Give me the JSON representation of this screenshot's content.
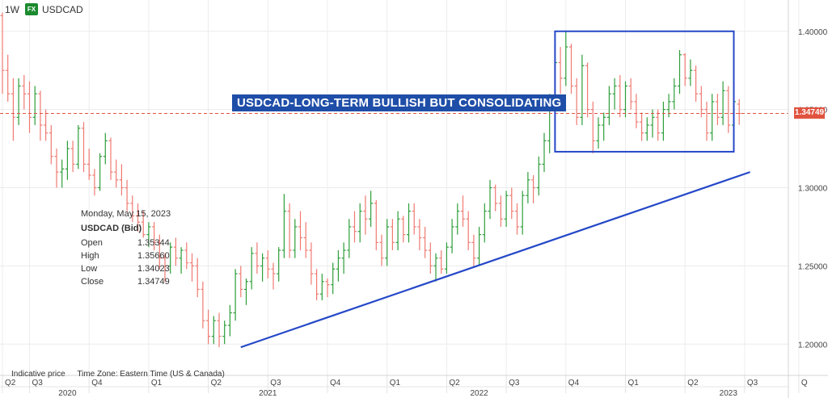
{
  "header": {
    "timeframe": "1W",
    "badge": "FX",
    "symbol": "USDCAD"
  },
  "annotation": {
    "banner": "USDCAD-LONG-TERM BULLISH BUT CONSOLIDATING"
  },
  "tooltip": {
    "date": "Monday, May 15, 2023",
    "title": "USDCAD (Bid)",
    "rows": [
      {
        "label": "Open",
        "value": "1.35344"
      },
      {
        "label": "High",
        "value": "1.35660"
      },
      {
        "label": "Low",
        "value": "1.34023"
      },
      {
        "label": "Close",
        "value": "1.34749"
      }
    ]
  },
  "footer": {
    "indicative": "Indicative price",
    "timezone": "Time Zone: Eastern Time (US & Canada)"
  },
  "current_price": {
    "label": "1.34749",
    "color": "#e0533f"
  },
  "colors": {
    "up": "#2e9e3a",
    "down": "#ef7a72",
    "trendline": "#2548c8",
    "box": "#2548c8",
    "banner_bg": "#1f4ea8"
  },
  "chart_data": {
    "type": "ohlc",
    "interval": "1W",
    "ylim": [
      1.18,
      1.42
    ],
    "y_ticks": [
      "1.20000",
      "1.25000",
      "1.30000",
      "1.35000",
      "1.40000"
    ],
    "y_tick_values": [
      1.2,
      1.25,
      1.3,
      1.35,
      1.4
    ],
    "x_quarter_labels": [
      "Q2",
      "Q3",
      "Q4",
      "Q1",
      "Q2",
      "Q3",
      "Q4",
      "Q1",
      "Q2",
      "Q3",
      "Q4",
      "Q1",
      "Q2",
      "Q3",
      "Q"
    ],
    "x_quarter_weeks": [
      0,
      5,
      16,
      27,
      38,
      49,
      60,
      71,
      82,
      93,
      104,
      115,
      126,
      137,
      147
    ],
    "x_year_labels": [
      "2020",
      "2021",
      "2022",
      "2023"
    ],
    "x_year_weeks": [
      12,
      49,
      88,
      134
    ],
    "current_price": 1.34749,
    "trendline": {
      "start": {
        "week": 44,
        "price": 1.198
      },
      "end": {
        "week": 138,
        "price": 1.31
      }
    },
    "range_box": {
      "week_from": 102,
      "week_to": 135,
      "price_low": 1.323,
      "price_high": 1.4
    },
    "bars": [
      [
        1.41,
        1.412,
        1.36,
        1.375
      ],
      [
        1.375,
        1.385,
        1.355,
        1.36
      ],
      [
        1.36,
        1.37,
        1.33,
        1.345
      ],
      [
        1.345,
        1.37,
        1.34,
        1.365
      ],
      [
        1.365,
        1.372,
        1.35,
        1.36
      ],
      [
        1.36,
        1.368,
        1.335,
        1.345
      ],
      [
        1.345,
        1.365,
        1.34,
        1.36
      ],
      [
        1.36,
        1.362,
        1.33,
        1.34
      ],
      [
        1.34,
        1.35,
        1.33,
        1.335
      ],
      [
        1.335,
        1.34,
        1.315,
        1.32
      ],
      [
        1.32,
        1.325,
        1.3,
        1.31
      ],
      [
        1.31,
        1.318,
        1.3,
        1.312
      ],
      [
        1.312,
        1.33,
        1.305,
        1.325
      ],
      [
        1.325,
        1.33,
        1.31,
        1.315
      ],
      [
        1.315,
        1.34,
        1.312,
        1.338
      ],
      [
        1.338,
        1.342,
        1.31,
        1.315
      ],
      [
        1.315,
        1.325,
        1.305,
        1.308
      ],
      [
        1.308,
        1.312,
        1.295,
        1.3
      ],
      [
        1.3,
        1.322,
        1.298,
        1.32
      ],
      [
        1.32,
        1.335,
        1.315,
        1.33
      ],
      [
        1.33,
        1.332,
        1.305,
        1.31
      ],
      [
        1.31,
        1.318,
        1.3,
        1.305
      ],
      [
        1.305,
        1.315,
        1.295,
        1.3
      ],
      [
        1.3,
        1.305,
        1.285,
        1.29
      ],
      [
        1.29,
        1.295,
        1.278,
        1.282
      ],
      [
        1.282,
        1.29,
        1.272,
        1.278
      ],
      [
        1.278,
        1.285,
        1.268,
        1.27
      ],
      [
        1.27,
        1.278,
        1.262,
        1.275
      ],
      [
        1.275,
        1.278,
        1.26,
        1.265
      ],
      [
        1.265,
        1.27,
        1.248,
        1.255
      ],
      [
        1.255,
        1.258,
        1.24,
        1.25
      ],
      [
        1.25,
        1.265,
        1.245,
        1.262
      ],
      [
        1.262,
        1.268,
        1.25,
        1.255
      ],
      [
        1.255,
        1.262,
        1.245,
        1.26
      ],
      [
        1.26,
        1.265,
        1.248,
        1.252
      ],
      [
        1.252,
        1.258,
        1.24,
        1.25
      ],
      [
        1.25,
        1.255,
        1.23,
        1.235
      ],
      [
        1.235,
        1.24,
        1.21,
        1.215
      ],
      [
        1.215,
        1.222,
        1.2,
        1.205
      ],
      [
        1.205,
        1.218,
        1.2,
        1.215
      ],
      [
        1.215,
        1.22,
        1.198,
        1.205
      ],
      [
        1.205,
        1.215,
        1.2,
        1.212
      ],
      [
        1.212,
        1.225,
        1.205,
        1.22
      ],
      [
        1.22,
        1.248,
        1.215,
        1.245
      ],
      [
        1.245,
        1.25,
        1.23,
        1.235
      ],
      [
        1.235,
        1.242,
        1.225,
        1.24
      ],
      [
        1.24,
        1.262,
        1.235,
        1.258
      ],
      [
        1.258,
        1.265,
        1.245,
        1.25
      ],
      [
        1.25,
        1.258,
        1.24,
        1.255
      ],
      [
        1.255,
        1.26,
        1.242,
        1.248
      ],
      [
        1.248,
        1.252,
        1.235,
        1.245
      ],
      [
        1.245,
        1.262,
        1.24,
        1.26
      ],
      [
        1.26,
        1.296,
        1.255,
        1.285
      ],
      [
        1.285,
        1.29,
        1.255,
        1.26
      ],
      [
        1.26,
        1.28,
        1.255,
        1.275
      ],
      [
        1.275,
        1.285,
        1.26,
        1.268
      ],
      [
        1.268,
        1.278,
        1.255,
        1.26
      ],
      [
        1.26,
        1.265,
        1.238,
        1.245
      ],
      [
        1.245,
        1.248,
        1.228,
        1.232
      ],
      [
        1.232,
        1.245,
        1.228,
        1.24
      ],
      [
        1.24,
        1.242,
        1.23,
        1.238
      ],
      [
        1.238,
        1.252,
        1.232,
        1.248
      ],
      [
        1.248,
        1.26,
        1.24,
        1.255
      ],
      [
        1.255,
        1.265,
        1.245,
        1.26
      ],
      [
        1.26,
        1.28,
        1.255,
        1.275
      ],
      [
        1.275,
        1.285,
        1.265,
        1.272
      ],
      [
        1.272,
        1.29,
        1.265,
        1.285
      ],
      [
        1.285,
        1.295,
        1.27,
        1.28
      ],
      [
        1.28,
        1.298,
        1.275,
        1.29
      ],
      [
        1.29,
        1.292,
        1.26,
        1.265
      ],
      [
        1.265,
        1.27,
        1.25,
        1.255
      ],
      [
        1.255,
        1.28,
        1.25,
        1.275
      ],
      [
        1.275,
        1.28,
        1.26,
        1.265
      ],
      [
        1.265,
        1.285,
        1.26,
        1.28
      ],
      [
        1.28,
        1.282,
        1.265,
        1.27
      ],
      [
        1.27,
        1.29,
        1.265,
        1.285
      ],
      [
        1.285,
        1.29,
        1.27,
        1.275
      ],
      [
        1.275,
        1.28,
        1.26,
        1.268
      ],
      [
        1.268,
        1.275,
        1.255,
        1.26
      ],
      [
        1.26,
        1.265,
        1.245,
        1.25
      ],
      [
        1.25,
        1.258,
        1.24,
        1.255
      ],
      [
        1.255,
        1.26,
        1.245,
        1.248
      ],
      [
        1.248,
        1.265,
        1.245,
        1.262
      ],
      [
        1.262,
        1.28,
        1.258,
        1.275
      ],
      [
        1.275,
        1.29,
        1.27,
        1.285
      ],
      [
        1.285,
        1.295,
        1.275,
        1.28
      ],
      [
        1.28,
        1.285,
        1.26,
        1.265
      ],
      [
        1.265,
        1.27,
        1.25,
        1.255
      ],
      [
        1.255,
        1.275,
        1.25,
        1.27
      ],
      [
        1.27,
        1.29,
        1.265,
        1.285
      ],
      [
        1.285,
        1.305,
        1.28,
        1.3
      ],
      [
        1.3,
        1.302,
        1.285,
        1.29
      ],
      [
        1.29,
        1.295,
        1.275,
        1.28
      ],
      [
        1.28,
        1.298,
        1.275,
        1.295
      ],
      [
        1.295,
        1.3,
        1.28,
        1.285
      ],
      [
        1.285,
        1.29,
        1.27,
        1.275
      ],
      [
        1.275,
        1.298,
        1.27,
        1.295
      ],
      [
        1.295,
        1.31,
        1.29,
        1.305
      ],
      [
        1.305,
        1.308,
        1.29,
        1.3
      ],
      [
        1.3,
        1.32,
        1.295,
        1.315
      ],
      [
        1.315,
        1.335,
        1.31,
        1.33
      ],
      [
        1.33,
        1.36,
        1.322,
        1.35
      ],
      [
        1.35,
        1.385,
        1.345,
        1.38
      ],
      [
        1.38,
        1.39,
        1.36,
        1.37
      ],
      [
        1.37,
        1.4,
        1.365,
        1.39
      ],
      [
        1.39,
        1.392,
        1.36,
        1.365
      ],
      [
        1.365,
        1.37,
        1.34,
        1.345
      ],
      [
        1.345,
        1.385,
        1.34,
        1.378
      ],
      [
        1.378,
        1.38,
        1.345,
        1.35
      ],
      [
        1.35,
        1.355,
        1.322,
        1.33
      ],
      [
        1.33,
        1.345,
        1.325,
        1.34
      ],
      [
        1.34,
        1.348,
        1.33,
        1.345
      ],
      [
        1.345,
        1.365,
        1.34,
        1.36
      ],
      [
        1.36,
        1.37,
        1.35,
        1.365
      ],
      [
        1.365,
        1.372,
        1.345,
        1.35
      ],
      [
        1.35,
        1.368,
        1.345,
        1.365
      ],
      [
        1.365,
        1.37,
        1.35,
        1.355
      ],
      [
        1.355,
        1.36,
        1.338,
        1.342
      ],
      [
        1.342,
        1.348,
        1.33,
        1.335
      ],
      [
        1.335,
        1.345,
        1.33,
        1.34
      ],
      [
        1.34,
        1.35,
        1.332,
        1.345
      ],
      [
        1.345,
        1.35,
        1.33,
        1.335
      ],
      [
        1.335,
        1.355,
        1.33,
        1.35
      ],
      [
        1.35,
        1.36,
        1.345,
        1.355
      ],
      [
        1.355,
        1.37,
        1.35,
        1.365
      ],
      [
        1.365,
        1.388,
        1.36,
        1.385
      ],
      [
        1.385,
        1.386,
        1.365,
        1.37
      ],
      [
        1.37,
        1.382,
        1.365,
        1.375
      ],
      [
        1.375,
        1.378,
        1.355,
        1.36
      ],
      [
        1.36,
        1.365,
        1.345,
        1.35
      ],
      [
        1.35,
        1.355,
        1.33,
        1.335
      ],
      [
        1.335,
        1.36,
        1.33,
        1.355
      ],
      [
        1.355,
        1.36,
        1.34,
        1.345
      ],
      [
        1.345,
        1.368,
        1.34,
        1.362
      ],
      [
        1.362,
        1.365,
        1.335,
        1.34
      ],
      [
        1.34,
        1.358,
        1.335,
        1.355
      ],
      [
        1.35344,
        1.3566,
        1.34023,
        1.34749
      ]
    ]
  }
}
